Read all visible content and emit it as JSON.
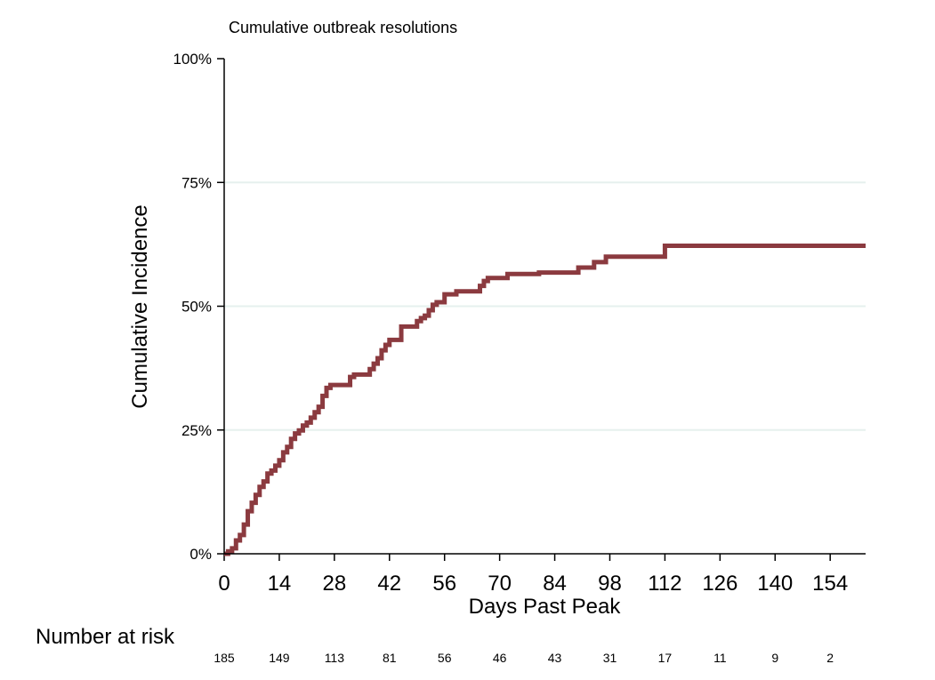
{
  "chart_data": {
    "type": "line",
    "step": true,
    "title": "Cumulative outbreak resolutions",
    "xlabel": "Days Past Peak",
    "ylabel": "Cumulative Incidence",
    "xlim": [
      0,
      163
    ],
    "ylim": [
      0,
      1
    ],
    "y_ticks": [
      0,
      0.25,
      0.5,
      0.75,
      1.0
    ],
    "y_tick_labels": [
      "0%",
      "25%",
      "50%",
      "75%",
      "100%"
    ],
    "x_ticks": [
      0,
      14,
      28,
      42,
      56,
      70,
      84,
      98,
      112,
      126,
      140,
      154
    ],
    "x_tick_labels": [
      "0",
      "14",
      "28",
      "42",
      "56",
      "70",
      "84",
      "98",
      "112",
      "126",
      "140",
      "154"
    ],
    "grid": "horizontal",
    "line_color": "#8b3a3f",
    "grid_color": "#e6f0ee",
    "series": [
      {
        "x": [
          0,
          1,
          2,
          3,
          4,
          5,
          6,
          7,
          8,
          9,
          10,
          11,
          12,
          13,
          14,
          15,
          16,
          17,
          18,
          19,
          20,
          21,
          22,
          23,
          24,
          25,
          26,
          27,
          28,
          32,
          33,
          37,
          38,
          39,
          40,
          41,
          42,
          45,
          49,
          50,
          51,
          52,
          53,
          54,
          56,
          59,
          65,
          66,
          67,
          72,
          80,
          90,
          94,
          97,
          112,
          163
        ],
        "y": [
          0,
          0.005,
          0.011,
          0.027,
          0.038,
          0.059,
          0.086,
          0.103,
          0.119,
          0.135,
          0.146,
          0.162,
          0.168,
          0.178,
          0.189,
          0.205,
          0.216,
          0.232,
          0.243,
          0.249,
          0.259,
          0.265,
          0.275,
          0.286,
          0.297,
          0.319,
          0.335,
          0.341,
          0.341,
          0.357,
          0.362,
          0.373,
          0.384,
          0.395,
          0.411,
          0.422,
          0.432,
          0.459,
          0.47,
          0.476,
          0.481,
          0.492,
          0.503,
          0.508,
          0.524,
          0.53,
          0.541,
          0.551,
          0.557,
          0.565,
          0.568,
          0.578,
          0.589,
          0.6,
          0.622,
          0.622
        ]
      }
    ],
    "risk_table": {
      "title": "Number at risk",
      "x": [
        0,
        14,
        28,
        42,
        56,
        70,
        84,
        98,
        112,
        126,
        140,
        154
      ],
      "values": [
        "185",
        "149",
        "113",
        "81",
        "56",
        "46",
        "43",
        "31",
        "17",
        "11",
        "9",
        "2"
      ]
    }
  }
}
